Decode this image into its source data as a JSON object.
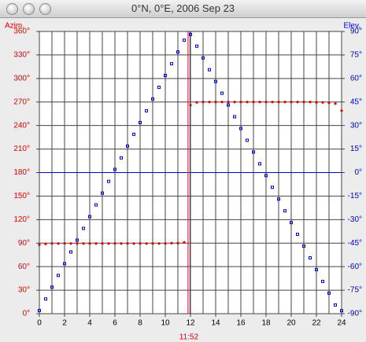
{
  "window_title": "0°N, 0°E, 2006 Sep 23",
  "chart_data": {
    "type": "scatter",
    "ylabel": "Azim.",
    "y2label": "Elev.",
    "x": [
      0,
      0.5,
      1,
      1.5,
      2,
      2.5,
      3,
      3.5,
      4,
      4.5,
      5,
      5.5,
      6,
      6.5,
      7,
      7.5,
      8,
      8.5,
      9,
      9.5,
      10,
      10.5,
      11,
      11.5,
      12,
      12.5,
      13,
      13.5,
      14,
      14.5,
      15,
      15.5,
      16,
      16.5,
      17,
      17.5,
      18,
      18.5,
      19,
      19.5,
      20,
      20.5,
      21,
      21.5,
      22,
      22.5,
      23,
      23.5,
      24
    ],
    "series": [
      {
        "name": "Azim.",
        "color": "#dd0000",
        "marker": "circle",
        "values": [
          88,
          89,
          89.5,
          89.5,
          89.5,
          89.5,
          89.5,
          89.5,
          89.5,
          89.5,
          89.5,
          89.5,
          89.5,
          89.5,
          89.5,
          89.5,
          89.5,
          89.5,
          89.5,
          89.5,
          89.5,
          90,
          90,
          91,
          266,
          269.5,
          270,
          270,
          270,
          270,
          270,
          270,
          270,
          270,
          270,
          270,
          270,
          270,
          270,
          270,
          270,
          270,
          270,
          270,
          269.5,
          269.5,
          269,
          268,
          259
        ]
      },
      {
        "name": "Elev.",
        "color": "#0000cc",
        "marker": "square",
        "axis": "y2",
        "values": [
          -88,
          -80.6,
          -73.1,
          -65.6,
          -58.1,
          -50.6,
          -43.1,
          -35.6,
          -28.1,
          -20.6,
          -13.1,
          -5.6,
          2,
          9.4,
          16.9,
          24.4,
          31.9,
          39.4,
          46.9,
          54.4,
          61.9,
          69.4,
          76.9,
          84.4,
          88.1,
          80.6,
          73.1,
          65.6,
          58.1,
          50.6,
          43.1,
          35.6,
          28.1,
          20.6,
          13.1,
          5.6,
          -1.9,
          -9.4,
          -16.9,
          -24.4,
          -31.9,
          -39.4,
          -46.9,
          -54.4,
          -61.9,
          -69.4,
          -76.9,
          -84.4,
          -88.1
        ]
      }
    ],
    "xlim": [
      0,
      24
    ],
    "xticks": [
      0,
      2,
      4,
      6,
      8,
      10,
      12,
      14,
      16,
      18,
      20,
      22,
      24
    ],
    "xticks_minor": [
      1,
      3,
      5,
      7,
      9,
      11,
      13,
      15,
      17,
      19,
      21,
      23
    ],
    "ylim": [
      0,
      360
    ],
    "yticks": [
      {
        "value": 0,
        "label": "0°"
      },
      {
        "value": 30,
        "label": "30°"
      },
      {
        "value": 60,
        "label": "60°"
      },
      {
        "value": 90,
        "label": "90°"
      },
      {
        "value": 120,
        "label": "120°"
      },
      {
        "value": 150,
        "label": "150°"
      },
      {
        "value": 180,
        "label": "180°"
      },
      {
        "value": 210,
        "label": "210°"
      },
      {
        "value": 240,
        "label": "240°"
      },
      {
        "value": 270,
        "label": "270°"
      },
      {
        "value": 300,
        "label": "300°"
      },
      {
        "value": 330,
        "label": "330°"
      },
      {
        "value": 360,
        "label": "360°"
      }
    ],
    "y2lim": [
      -90,
      90
    ],
    "y2ticks": [
      {
        "value": -90,
        "label": "-90°"
      },
      {
        "value": -75,
        "label": "-75°"
      },
      {
        "value": -60,
        "label": "-60°"
      },
      {
        "value": -45,
        "label": "-45°"
      },
      {
        "value": -30,
        "label": "-30°"
      },
      {
        "value": -15,
        "label": "-15°"
      },
      {
        "value": 0,
        "label": "0°"
      },
      {
        "value": 15,
        "label": "15°"
      },
      {
        "value": 30,
        "label": "30°"
      },
      {
        "value": 45,
        "label": "45°"
      },
      {
        "value": 60,
        "label": "60°"
      },
      {
        "value": 75,
        "label": "75°"
      },
      {
        "value": 90,
        "label": "90°"
      }
    ],
    "grid": true,
    "hline": {
      "axis": "y2",
      "value": 0,
      "color": "#0000cc"
    },
    "vline": {
      "x": 11.87,
      "label": "11:52",
      "color": "#dd0000"
    }
  }
}
